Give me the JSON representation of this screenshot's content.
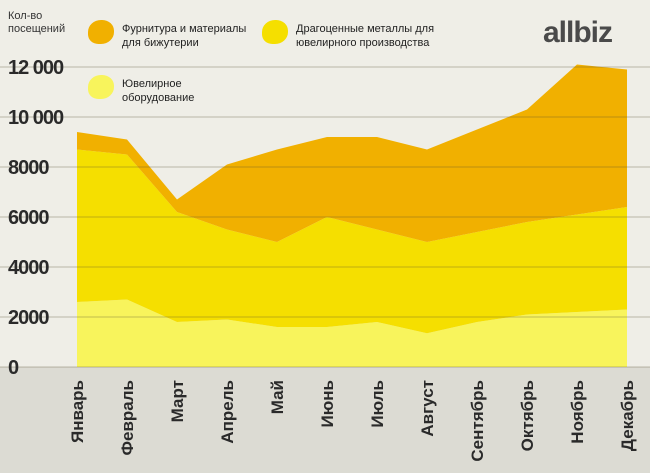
{
  "chart_data": {
    "type": "stacked-area",
    "y_label": "Кол-во посещений",
    "brand": "allbiz",
    "categories": [
      "Январь",
      "Февраль",
      "Март",
      "Апрель",
      "Май",
      "Июнь",
      "Июль",
      "Август",
      "Сентябрь",
      "Октябрь",
      "Ноябрь",
      "Декабрь"
    ],
    "series": [
      {
        "name": "Ювелирное оборудование",
        "color": "#f8f45c",
        "values": [
          2600,
          2700,
          1800,
          1900,
          1600,
          1600,
          1800,
          1350,
          1800,
          2100,
          2200,
          2300
        ]
      },
      {
        "name": "Драгоценные металлы для ювелирного производства",
        "color": "#f5df00",
        "values": [
          6100,
          5800,
          4400,
          3600,
          3400,
          4400,
          3700,
          3650,
          3600,
          3700,
          3900,
          4100
        ]
      },
      {
        "name": "Фурнитура и материалы для бижутерии",
        "color": "#f1b000",
        "values": [
          700,
          600,
          500,
          2600,
          3700,
          3200,
          3700,
          3700,
          4100,
          4500,
          6000,
          5500
        ]
      }
    ],
    "ylim": [
      0,
      12000
    ],
    "yticks": [
      0,
      2000,
      4000,
      6000,
      8000,
      {
        "value": 10000,
        "label": "10 000"
      },
      {
        "value": 12000,
        "label": "12 000"
      }
    ],
    "grid": true
  }
}
